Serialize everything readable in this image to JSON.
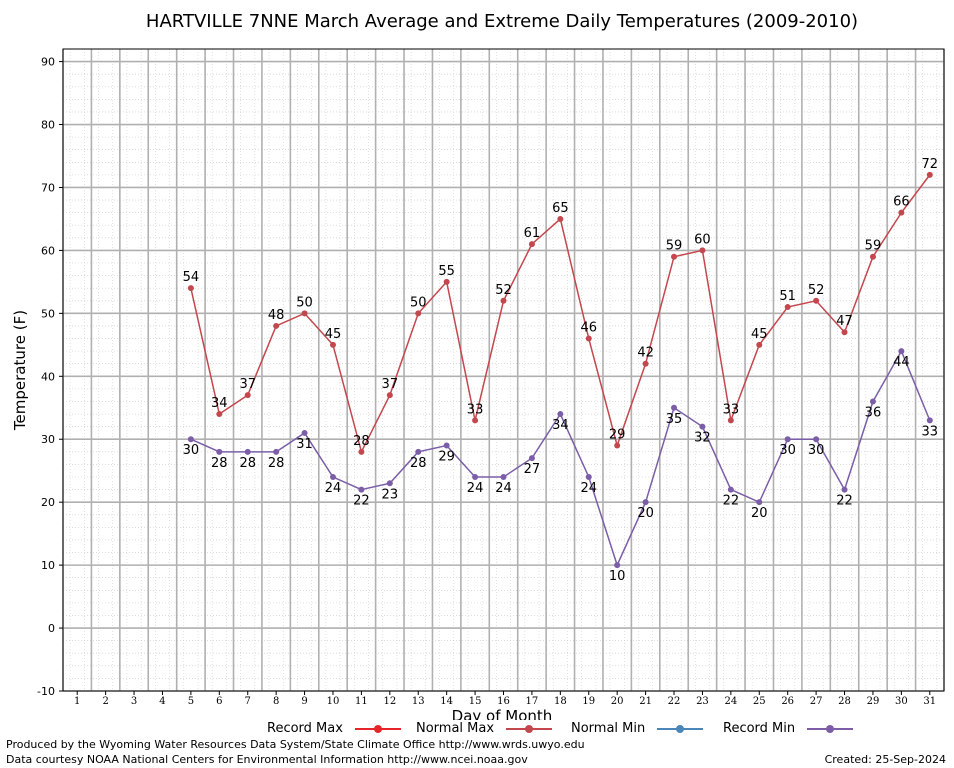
{
  "colors": {
    "record_max": "#e8242b",
    "normal_max": "#c4474e",
    "normal_min": "#4a86b8",
    "record_min": "#7b5ea7",
    "grid": "#b0b0b0"
  },
  "chart_data": {
    "type": "line",
    "title": "HARTVILLE 7NNE March Average and Extreme Daily Temperatures (2009-2010)",
    "xlabel": "Day of Month",
    "ylabel": "Temperature (F)",
    "xlim": [
      0.5,
      31.5
    ],
    "ylim": [
      -10,
      92
    ],
    "x_ticks": [
      1,
      2,
      3,
      4,
      5,
      6,
      7,
      8,
      9,
      10,
      11,
      12,
      13,
      14,
      15,
      16,
      17,
      18,
      19,
      20,
      21,
      22,
      23,
      24,
      25,
      26,
      27,
      28,
      29,
      30,
      31
    ],
    "y_ticks": [
      -10,
      0,
      10,
      20,
      30,
      40,
      50,
      60,
      70,
      80,
      90
    ],
    "grid": true,
    "legend_placement": "bottom",
    "series": [
      {
        "name": "Record Max",
        "x": [],
        "y": []
      },
      {
        "name": "Normal Max",
        "x": [
          5,
          6,
          7,
          8,
          9,
          10,
          11,
          12,
          13,
          14,
          15,
          16,
          17,
          18,
          19,
          20,
          21,
          22,
          23,
          24,
          25,
          26,
          27,
          28,
          29,
          30,
          31
        ],
        "y": [
          54,
          34,
          37,
          48,
          50,
          45,
          28,
          37,
          50,
          55,
          33,
          52,
          61,
          65,
          46,
          29,
          42,
          59,
          60,
          33,
          45,
          51,
          52,
          47,
          59,
          66,
          72
        ]
      },
      {
        "name": "Normal Min",
        "x": [],
        "y": []
      },
      {
        "name": "Record Min",
        "x": [
          5,
          6,
          7,
          8,
          9,
          10,
          11,
          12,
          13,
          14,
          15,
          16,
          17,
          18,
          19,
          20,
          21,
          22,
          23,
          24,
          25,
          26,
          27,
          28,
          29,
          30,
          31
        ],
        "y": [
          30,
          28,
          28,
          28,
          31,
          24,
          22,
          23,
          28,
          29,
          24,
          24,
          27,
          34,
          24,
          10,
          20,
          35,
          32,
          22,
          20,
          30,
          30,
          22,
          36,
          44,
          33
        ]
      }
    ]
  },
  "legend": [
    {
      "label": "Record Max",
      "color_key": "record_max"
    },
    {
      "label": "Normal Max",
      "color_key": "normal_max"
    },
    {
      "label": "Normal Min",
      "color_key": "normal_min"
    },
    {
      "label": "Record Min",
      "color_key": "record_min"
    }
  ],
  "footer": {
    "produced_by": "Produced by the Wyoming Water Resources Data System/State Climate Office http://www.wrds.uwyo.edu",
    "courtesy": "Data courtesy NOAA National Centers for Environmental Information http://www.ncei.noaa.gov",
    "created": "Created:  25-Sep-2024"
  }
}
